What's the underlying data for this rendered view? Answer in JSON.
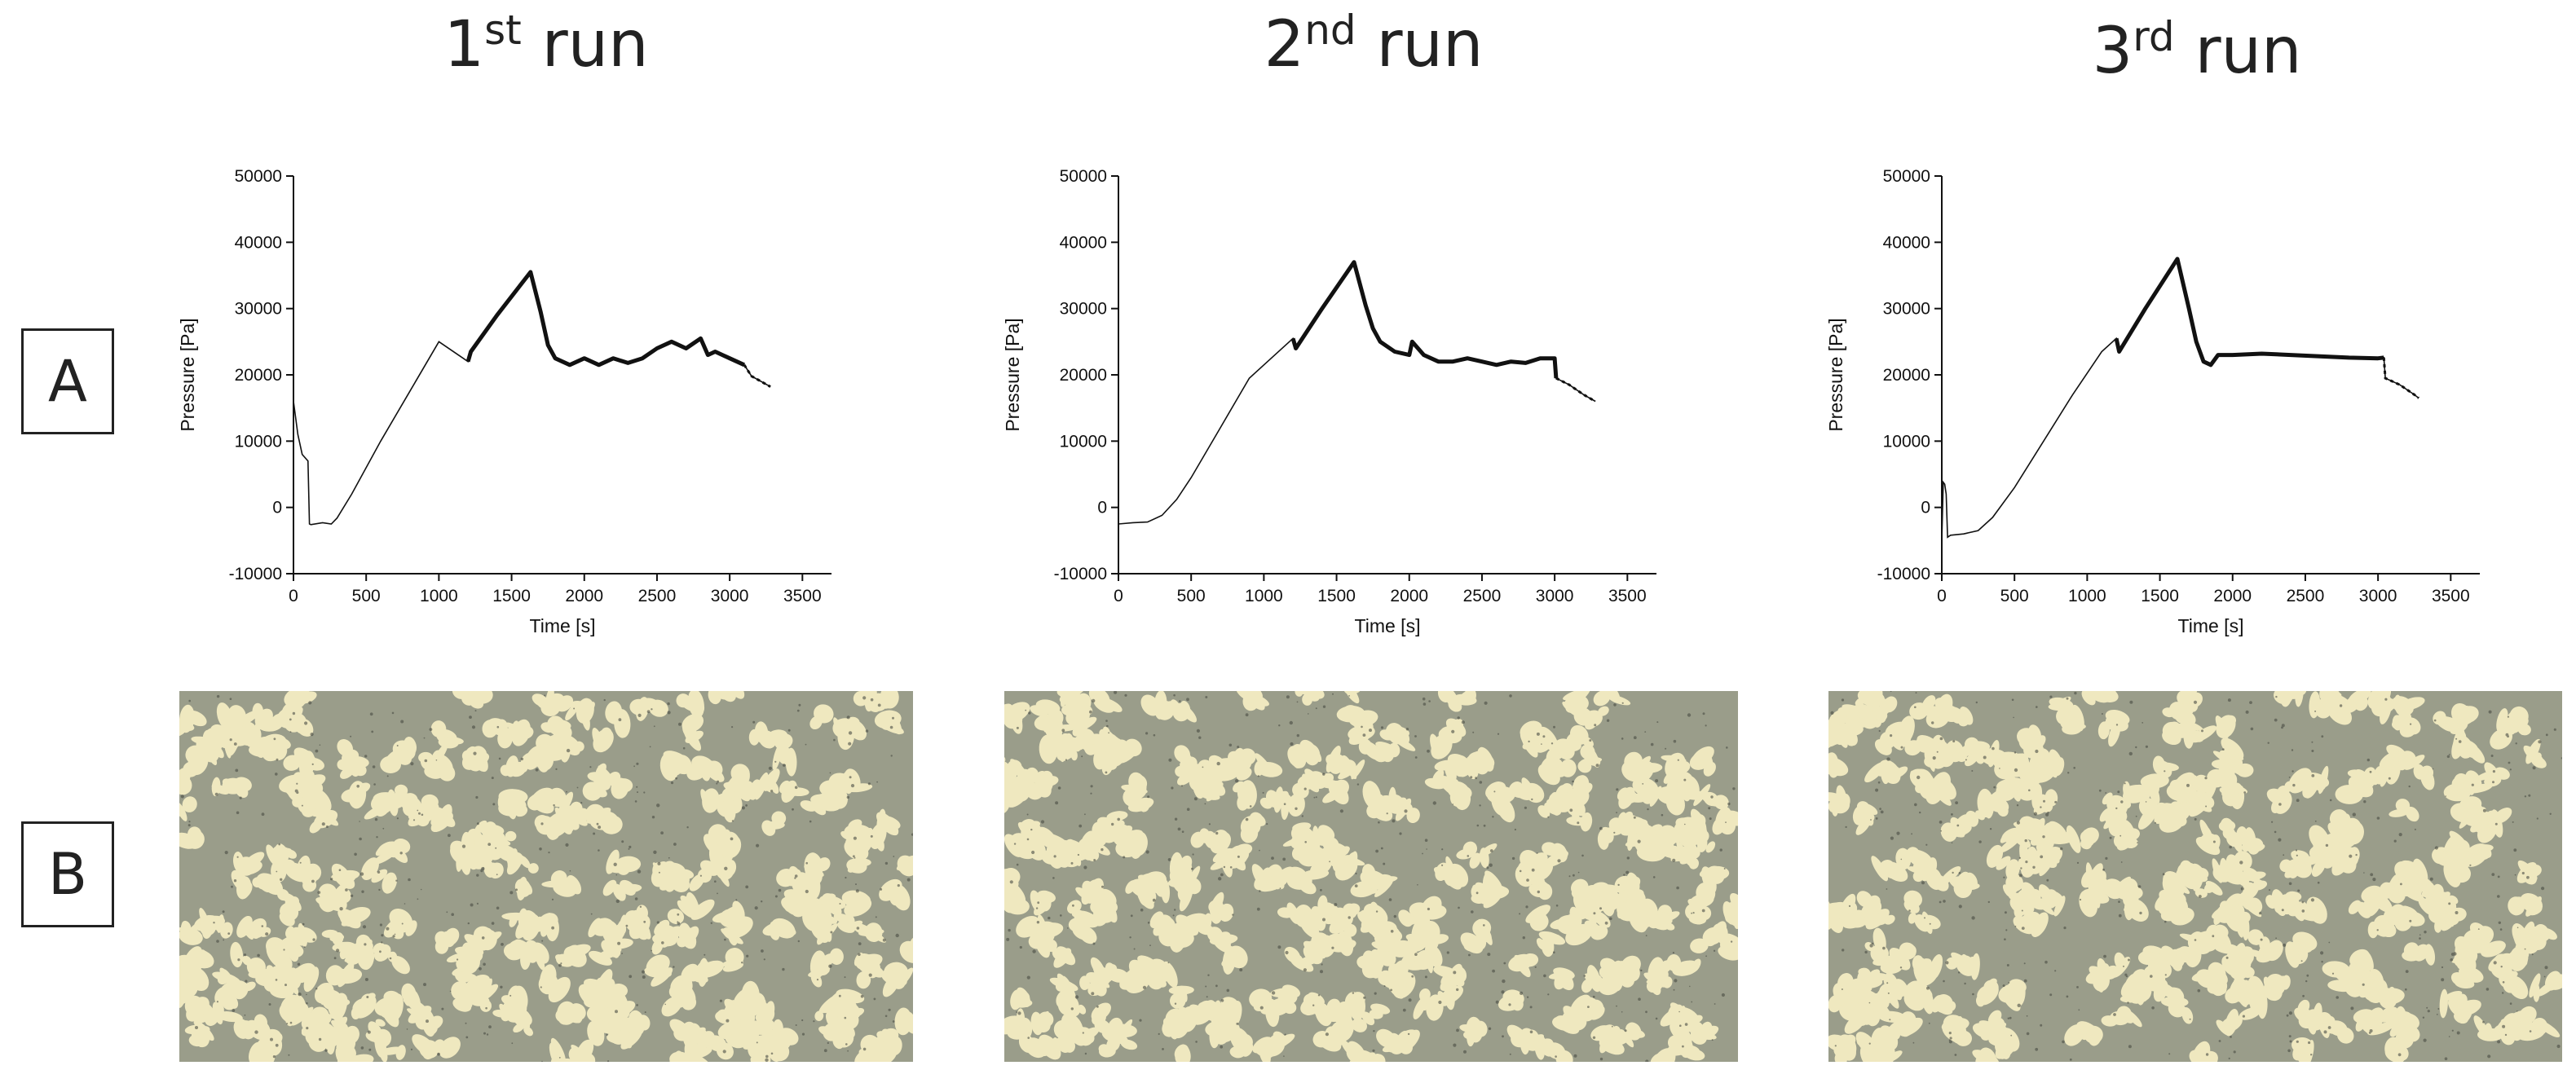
{
  "row_labels": {
    "a": "A",
    "b": "B"
  },
  "runs": [
    {
      "num": "1",
      "sup": "st",
      "word": " run"
    },
    {
      "num": "2",
      "sup": "nd",
      "word": " run"
    },
    {
      "num": "3",
      "sup": "rd",
      "word": " run"
    }
  ],
  "colors": {
    "line": "#111111",
    "micro_bg": "#9a9d8a",
    "micro_pore": "#efe8bf"
  },
  "chart_data": [
    {
      "type": "line",
      "title": "1st run",
      "xlabel": "Time [s]",
      "ylabel": "Pressure [Pa]",
      "xlim": [
        0,
        3700
      ],
      "ylim": [
        -10000,
        50000
      ],
      "xticks": [
        0,
        500,
        1000,
        1500,
        2000,
        2500,
        3000,
        3500
      ],
      "yticks": [
        -10000,
        0,
        10000,
        20000,
        30000,
        40000,
        50000
      ],
      "series": [
        {
          "x": [
            0,
            30,
            60,
            100,
            110,
            120,
            200,
            260,
            300,
            400,
            600,
            800,
            1000,
            1200,
            1220,
            1400,
            1630,
            1700,
            1750,
            1800,
            1900,
            2000,
            2100,
            2200,
            2300,
            2400,
            2500,
            2600,
            2700,
            2800,
            2850,
            2900,
            3000,
            3100,
            3150,
            3200,
            3280
          ],
          "y": [
            16000,
            11000,
            8000,
            7000,
            -2500,
            -2600,
            -2300,
            -2500,
            -1600,
            2000,
            10000,
            17500,
            25000,
            22000,
            23500,
            29000,
            35500,
            29500,
            24500,
            22500,
            21500,
            22500,
            21500,
            22500,
            21800,
            22500,
            24000,
            25000,
            24000,
            25500,
            23000,
            23500,
            22500,
            21500,
            19800,
            19200,
            18200
          ],
          "thick_from": 1200,
          "thick_to": 3100
        }
      ]
    },
    {
      "type": "line",
      "title": "2nd run",
      "xlabel": "Time [s]",
      "ylabel": "Pressure [Pa]",
      "xlim": [
        0,
        3700
      ],
      "ylim": [
        -10000,
        50000
      ],
      "xticks": [
        0,
        500,
        1000,
        1500,
        2000,
        2500,
        3000,
        3500
      ],
      "yticks": [
        -10000,
        0,
        10000,
        20000,
        30000,
        40000,
        50000
      ],
      "series": [
        {
          "x": [
            0,
            100,
            200,
            300,
            400,
            500,
            700,
            900,
            1000,
            1200,
            1220,
            1400,
            1620,
            1700,
            1750,
            1800,
            1900,
            2000,
            2020,
            2100,
            2200,
            2300,
            2400,
            2500,
            2600,
            2700,
            2800,
            2900,
            3000,
            3010,
            3100,
            3200,
            3280
          ],
          "y": [
            -2500,
            -2300,
            -2200,
            -1200,
            1200,
            4500,
            12000,
            19500,
            21500,
            25500,
            24000,
            30000,
            37000,
            30500,
            27000,
            25000,
            23500,
            23000,
            25000,
            23000,
            22000,
            22000,
            22500,
            22000,
            21500,
            22000,
            21800,
            22500,
            22500,
            19500,
            18500,
            17000,
            16000
          ],
          "thick_from": 1200,
          "thick_to": 3010
        }
      ]
    },
    {
      "type": "line",
      "title": "3rd run",
      "xlabel": "Time [s]",
      "ylabel": "Pressure [Pa]",
      "xlim": [
        0,
        3700
      ],
      "ylim": [
        -10000,
        50000
      ],
      "xticks": [
        0,
        500,
        1000,
        1500,
        2000,
        2500,
        3000,
        3500
      ],
      "yticks": [
        -10000,
        0,
        10000,
        20000,
        30000,
        40000,
        50000
      ],
      "series": [
        {
          "x": [
            0,
            10,
            20,
            30,
            40,
            60,
            150,
            250,
            350,
            500,
            700,
            900,
            1100,
            1200,
            1220,
            1400,
            1620,
            1700,
            1750,
            1800,
            1850,
            1900,
            2000,
            2200,
            2400,
            2600,
            2800,
            3000,
            3040,
            3050,
            3150,
            3250,
            3280
          ],
          "y": [
            -5000,
            3800,
            3500,
            2000,
            -4500,
            -4200,
            -4000,
            -3500,
            -1500,
            3000,
            10000,
            17000,
            23500,
            25500,
            23500,
            30000,
            37500,
            30000,
            25000,
            22000,
            21500,
            23000,
            23000,
            23200,
            23000,
            22800,
            22600,
            22500,
            22600,
            19500,
            18500,
            17000,
            16500
          ],
          "thick_from": 1200,
          "thick_to": 3040
        }
      ]
    }
  ]
}
